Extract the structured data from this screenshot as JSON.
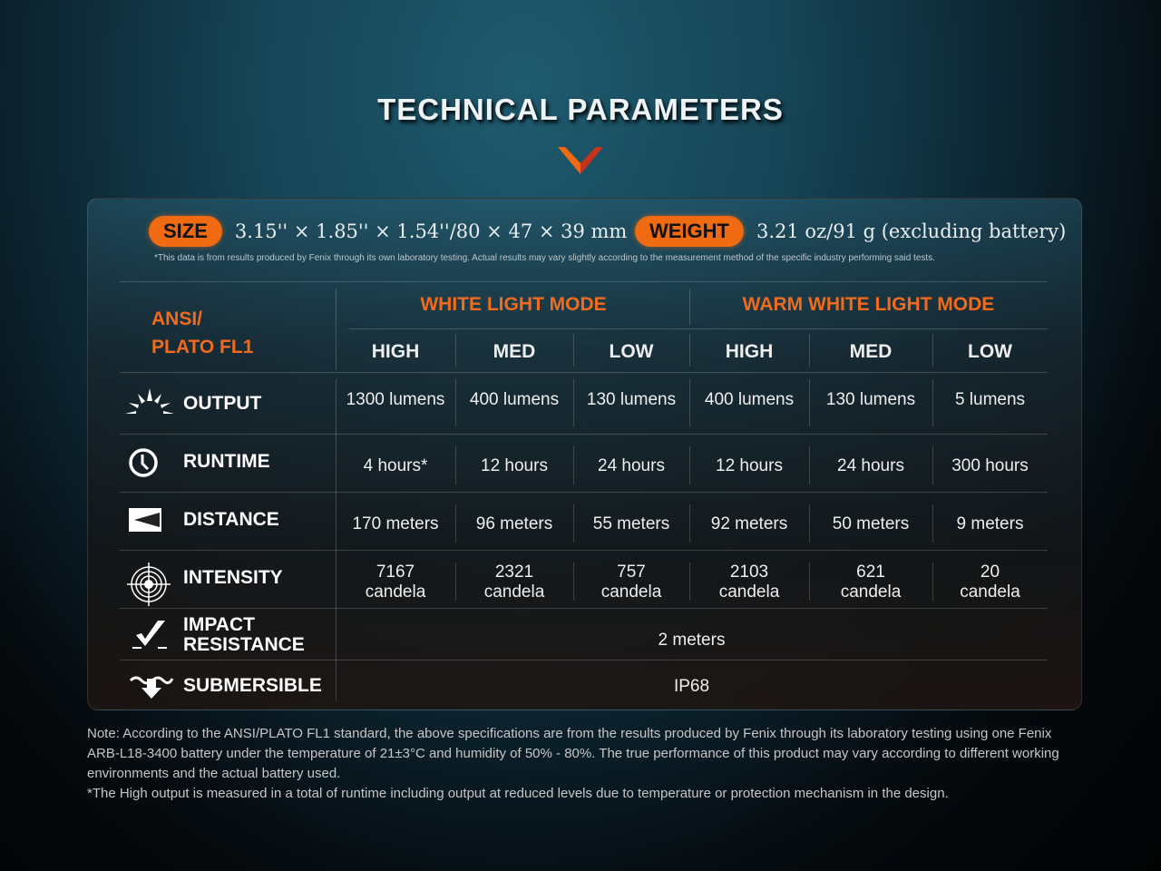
{
  "title": "TECHNICAL PARAMETERS",
  "colors": {
    "accent": "#f06a12"
  },
  "size": {
    "label": "SIZE",
    "value": "3.15'' × 1.85'' × 1.54''/80 × 47 × 39 mm"
  },
  "weight": {
    "label": "WEIGHT",
    "value": "3.21 oz/91 g (excluding battery)"
  },
  "disclaimer": "*This data is from results produced by Fenix through its own laboratory testing. Actual results may vary slightly according to the measurement method of the specific industry performing said tests.",
  "table": {
    "corner": [
      "ANSI/",
      "PLATO FL1"
    ],
    "modes": [
      "WHITE LIGHT MODE",
      "WARM WHITE LIGHT MODE"
    ],
    "levels": [
      "HIGH",
      "MED",
      "LOW",
      "HIGH",
      "MED",
      "LOW"
    ],
    "rows": [
      {
        "label": "OUTPUT",
        "icon": "sunburst-icon",
        "values": [
          "1300 lumens",
          "400 lumens",
          "130 lumens",
          "400 lumens",
          "130 lumens",
          "5 lumens"
        ]
      },
      {
        "label": "RUNTIME",
        "icon": "clock-icon",
        "values": [
          "4 hours*",
          "12 hours",
          "24 hours",
          "12 hours",
          "24 hours",
          "300 hours"
        ]
      },
      {
        "label": "DISTANCE",
        "icon": "beam-distance-icon",
        "values": [
          "170 meters",
          "96 meters",
          "55 meters",
          "92 meters",
          "50 meters",
          "9 meters"
        ]
      },
      {
        "label": "INTENSITY",
        "icon": "target-icon",
        "values": [
          "7167 candela",
          "2321 candela",
          "757 candela",
          "2103 candela",
          "621 candela",
          "20 candela"
        ]
      }
    ],
    "impact": {
      "label": [
        "IMPACT",
        "RESISTANCE"
      ],
      "icon": "impact-check-icon",
      "value": "2 meters"
    },
    "submersible": {
      "label": "SUBMERSIBLE",
      "icon": "water-arrow-icon",
      "value": "IP68"
    }
  },
  "note": [
    "Note: According to the ANSI/PLATO FL1 standard, the above specifications are from the results produced by Fenix through its laboratory testing using one Fenix ARB-L18-3400 battery under the temperature of 21±3°C and humidity of 50% - 80%. The true performance of this product may vary according to different working environments and the actual battery used.",
    "*The High output is measured in a total of runtime including output at reduced levels due to temperature or protection mechanism in the design."
  ]
}
